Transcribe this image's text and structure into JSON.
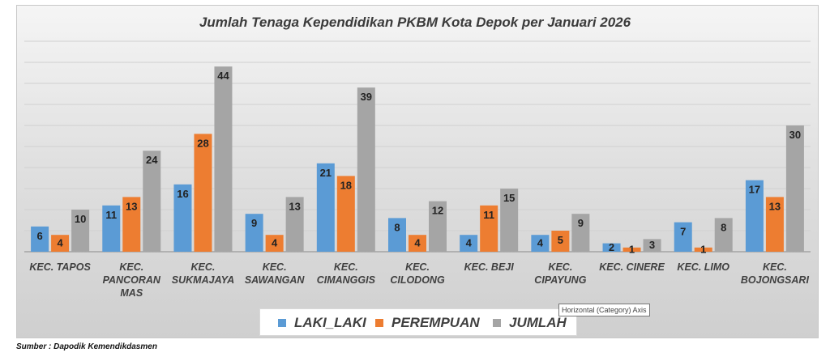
{
  "chart_data": {
    "type": "bar",
    "title": "Jumlah Tenaga Kependidikan PKBM Kota Depok per Januari 2026",
    "categories": [
      "KEC. TAPOS",
      "KEC. PANCORAN MAS",
      "KEC. SUKMAJAYA",
      "KEC. SAWANGAN",
      "KEC. CIMANGGIS",
      "KEC. CILODONG",
      "KEC. BEJI",
      "KEC. CIPAYUNG",
      "KEC. CINERE",
      "KEC. LIMO",
      "KEC. BOJONGSARI"
    ],
    "series": [
      {
        "name": "LAKI_LAKI",
        "color": "#5b9bd5",
        "values": [
          6,
          11,
          16,
          9,
          21,
          8,
          4,
          4,
          2,
          7,
          17
        ]
      },
      {
        "name": "PEREMPUAN",
        "color": "#ed7d31",
        "values": [
          4,
          13,
          28,
          4,
          18,
          4,
          11,
          5,
          1,
          1,
          13
        ]
      },
      {
        "name": "JUMLAH",
        "color": "#a5a5a5",
        "values": [
          10,
          24,
          44,
          13,
          39,
          12,
          15,
          9,
          3,
          8,
          30
        ]
      }
    ],
    "ylim": [
      0,
      50
    ],
    "grid": true,
    "legend_position": "bottom",
    "data_labels": true
  },
  "tooltip": "Horizontal (Category) Axis",
  "source": "Sumber : Dapodik Kemendikdasmen"
}
